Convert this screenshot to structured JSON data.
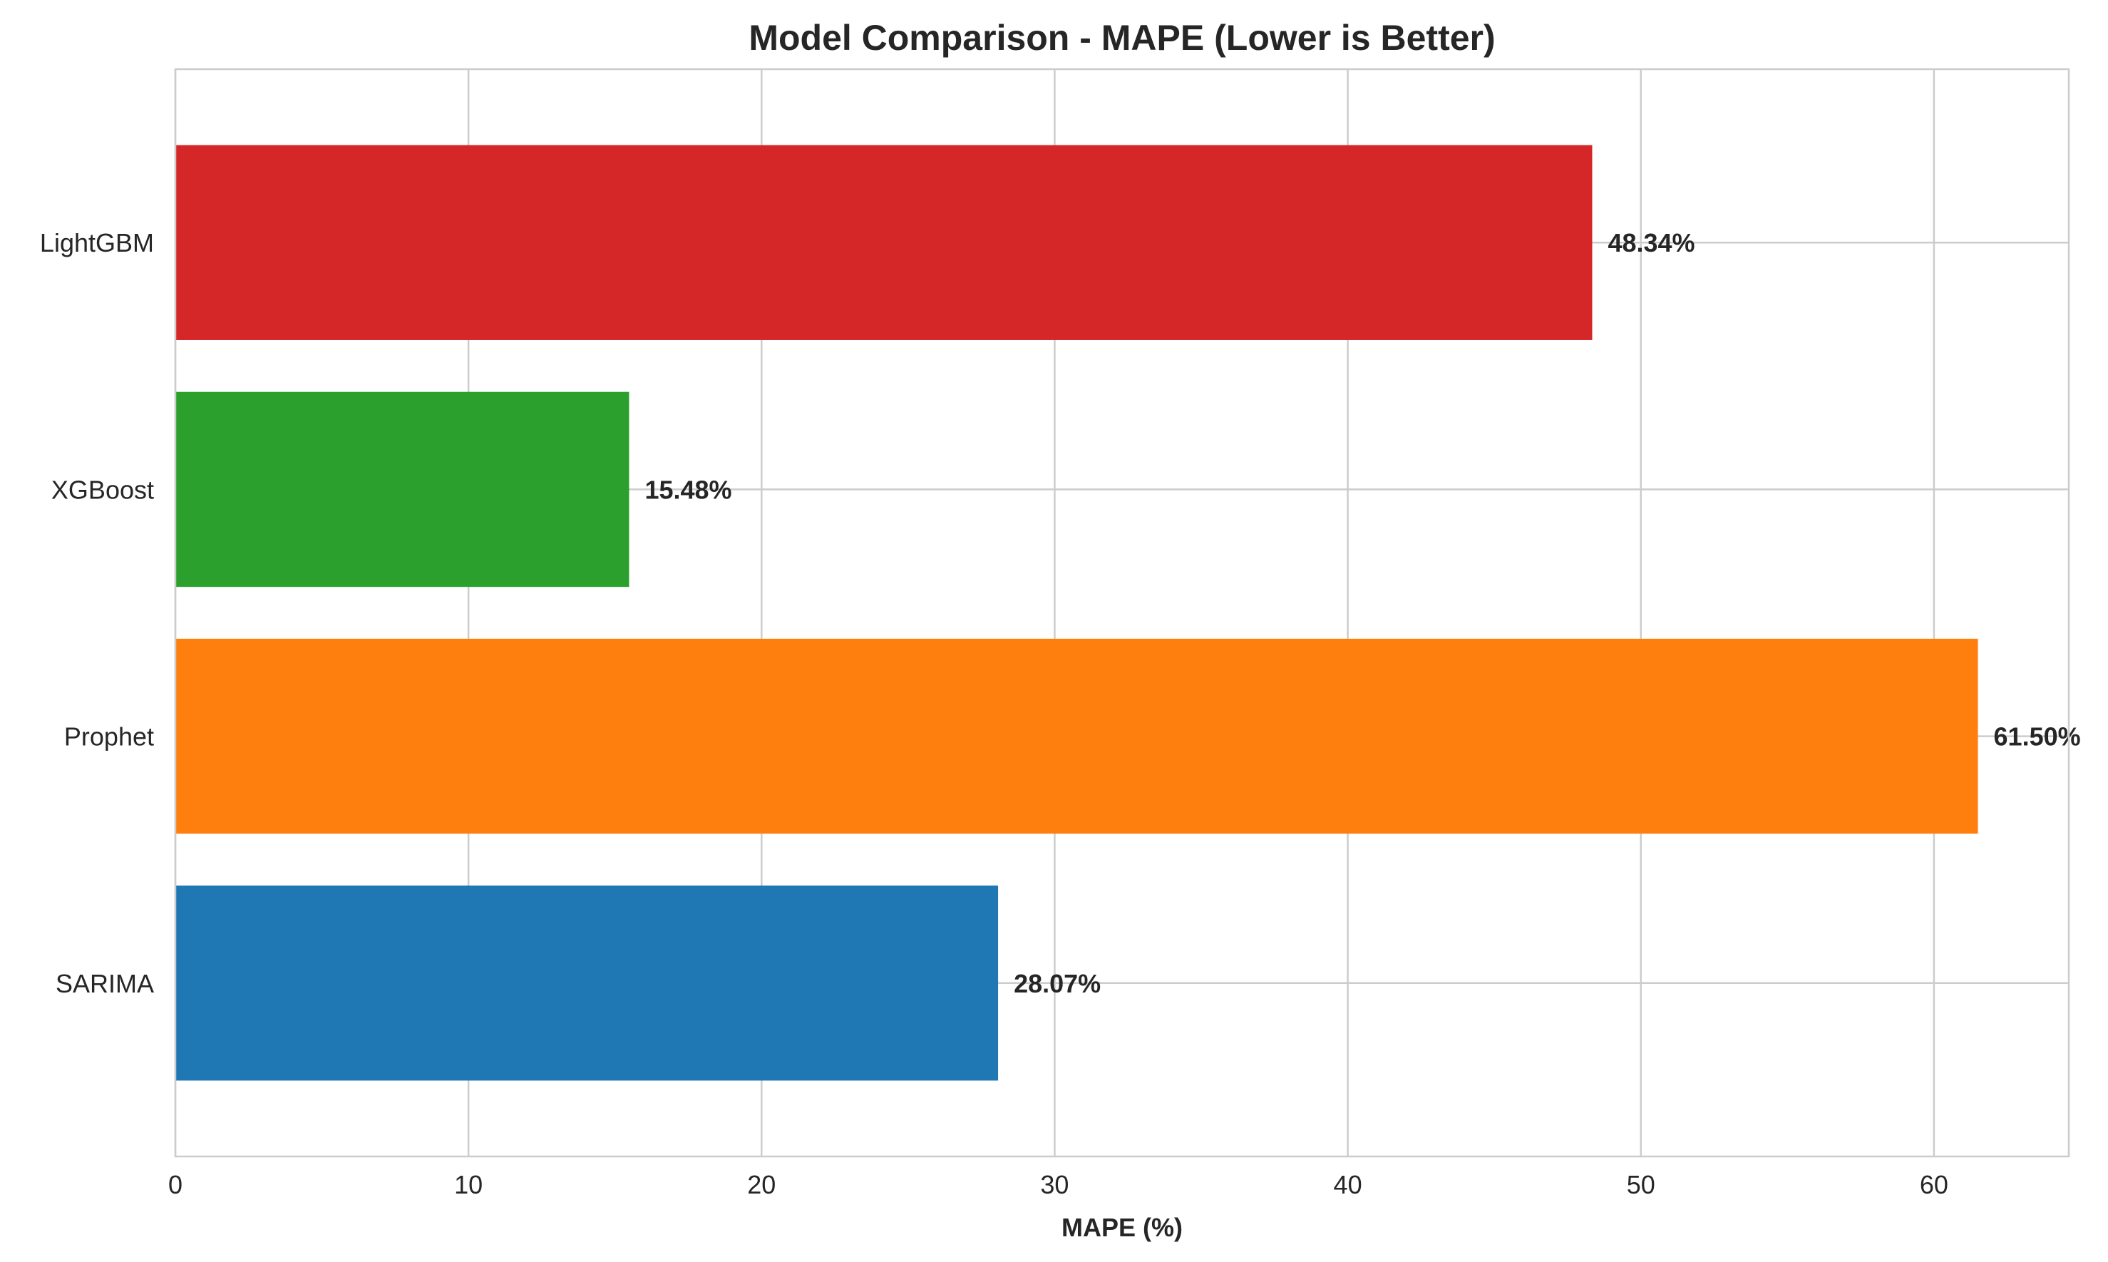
{
  "chart_data": {
    "type": "bar",
    "orientation": "horizontal",
    "title": "Model Comparison - MAPE (Lower is Better)",
    "xlabel": "MAPE (%)",
    "ylabel": "",
    "categories": [
      "SARIMA",
      "Prophet",
      "XGBoost",
      "LightGBM"
    ],
    "values": [
      28.07,
      61.5,
      15.48,
      48.34
    ],
    "value_labels": [
      "28.07%",
      "61.50%",
      "15.48%",
      "48.34%"
    ],
    "colors": [
      "#1f77b4",
      "#ff7f0e",
      "#2ca02c",
      "#d62728"
    ],
    "xlim": [
      0,
      64.6
    ],
    "xticks": [
      0,
      10,
      20,
      30,
      40,
      50,
      60
    ],
    "grid": true,
    "legend": "none"
  }
}
